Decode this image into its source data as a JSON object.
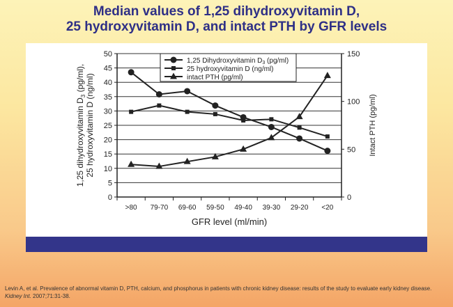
{
  "slide": {
    "title_line1": "Median values of 1,25 dihydroxyvitamin D,",
    "title_line2": "25 hydroxyvitamin D, and intact PTH by GFR levels",
    "citation_main": "Levin A, et al. Prevalence of abnormal vitamin D, PTH, calcium, and phosphorus in patients with chronic kidney disease: results of the study to evaluate early kidney disease. ",
    "citation_journal": "Kidney Int.",
    "citation_tail": " 2007;71:31-38.",
    "colors": {
      "title": "#2e2f86",
      "bar": "#33358a",
      "background_top": "#fdf3b8",
      "background_bottom": "#f4a566"
    }
  },
  "chart_data": {
    "type": "line",
    "categories": [
      ">80",
      "79-70",
      "69-60",
      "59-50",
      "49-40",
      "39-30",
      "29-20",
      "<20"
    ],
    "xlabel": "GFR level (ml/min)",
    "ylabel_line1": "1,25 dihydroxyvitamin D",
    "ylabel_sub": "3",
    "ylabel_line1_tail": " (pg/ml),",
    "ylabel_line2": "25 hydroxyvitamin D (ng/ml)",
    "ylabel_right": "Intact PTH (pg/ml)",
    "ylim": [
      0,
      50
    ],
    "yticks": [
      0,
      5,
      10,
      15,
      20,
      25,
      30,
      35,
      40,
      45,
      50
    ],
    "ylim_right": [
      0,
      150
    ],
    "yticks_right": [
      0,
      50,
      100,
      150
    ],
    "grid": true,
    "legend_position": "top-center",
    "series": [
      {
        "name": "1,25 Dihydroxyvitamin D",
        "name_sub": "3",
        "name_tail": " (pg/ml)",
        "marker": "circle",
        "axis": "left",
        "values": [
          43.5,
          35.8,
          36.9,
          31.9,
          27.8,
          24.4,
          20.4,
          16.1
        ]
      },
      {
        "name": "25 hydroxyvitamin D (ng/ml)",
        "marker": "square",
        "axis": "left",
        "values": [
          29.7,
          31.9,
          29.7,
          28.9,
          26.7,
          27.1,
          24.2,
          21.1
        ]
      },
      {
        "name": "intact PTH (pg/ml)",
        "marker": "triangle",
        "axis": "right",
        "values": [
          34,
          32,
          37,
          42,
          50,
          62,
          84,
          127
        ]
      }
    ]
  }
}
